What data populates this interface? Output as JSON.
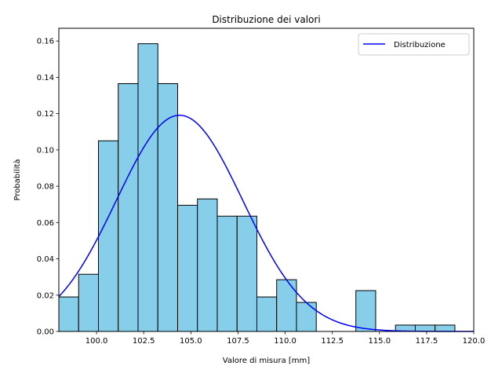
{
  "chart_data": {
    "type": "bar",
    "title": "Distribuzione dei valori",
    "xlabel": "Valore di misura [mm]",
    "ylabel": "Probabilità",
    "xlim": [
      98.0,
      120.0
    ],
    "ylim": [
      0.0,
      0.167
    ],
    "xticks": [
      "100.0",
      "102.5",
      "105.0",
      "107.5",
      "110.0",
      "112.5",
      "115.0",
      "117.5",
      "120.0"
    ],
    "yticks": [
      "0.00",
      "0.02",
      "0.04",
      "0.06",
      "0.08",
      "0.10",
      "0.12",
      "0.14",
      "0.16"
    ],
    "bar_color": "#87ceeb",
    "bar_edge_color": "#000000",
    "bins": [
      {
        "start": 98.0,
        "end": 99.05,
        "value": 0.019
      },
      {
        "start": 99.05,
        "end": 100.1,
        "value": 0.0315
      },
      {
        "start": 100.1,
        "end": 101.15,
        "value": 0.105
      },
      {
        "start": 101.15,
        "end": 102.2,
        "value": 0.1365
      },
      {
        "start": 102.2,
        "end": 103.25,
        "value": 0.1585
      },
      {
        "start": 103.25,
        "end": 104.3,
        "value": 0.1365
      },
      {
        "start": 104.3,
        "end": 105.35,
        "value": 0.0695
      },
      {
        "start": 105.35,
        "end": 106.4,
        "value": 0.073
      },
      {
        "start": 106.4,
        "end": 107.45,
        "value": 0.0635
      },
      {
        "start": 107.45,
        "end": 108.5,
        "value": 0.0635
      },
      {
        "start": 108.5,
        "end": 109.55,
        "value": 0.019
      },
      {
        "start": 109.55,
        "end": 110.6,
        "value": 0.0285
      },
      {
        "start": 110.6,
        "end": 111.65,
        "value": 0.016
      },
      {
        "start": 111.65,
        "end": 112.7,
        "value": 0.0
      },
      {
        "start": 112.7,
        "end": 113.75,
        "value": 0.0
      },
      {
        "start": 113.75,
        "end": 114.8,
        "value": 0.0225
      },
      {
        "start": 114.8,
        "end": 115.85,
        "value": 0.0
      },
      {
        "start": 115.85,
        "end": 116.9,
        "value": 0.0035
      },
      {
        "start": 116.9,
        "end": 117.95,
        "value": 0.0035
      },
      {
        "start": 117.95,
        "end": 119.0,
        "value": 0.0035
      }
    ],
    "series": [
      {
        "name": "Distribuzione",
        "type": "line",
        "color": "#0000ff",
        "distribution": "normal",
        "mean": 104.4,
        "std": 3.35
      }
    ],
    "legend": {
      "position": "top-right",
      "entries": [
        "Distribuzione"
      ]
    },
    "grid": false
  }
}
